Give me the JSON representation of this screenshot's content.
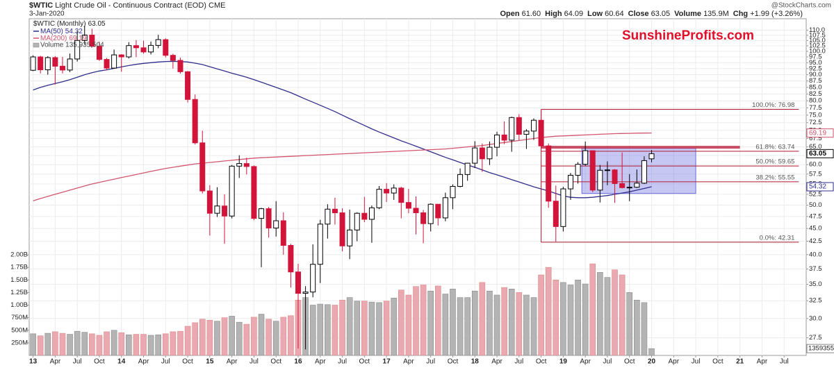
{
  "chart_data": {
    "type": "candlestick",
    "title": "$WTIC",
    "subtitle": "Light Crude Oil - Continuous Contract (EOD) CME",
    "date": "3-Jan-2020",
    "quote": [
      {
        "label": "Open",
        "text": "61.60"
      },
      {
        "label": "High",
        "text": "64.09"
      },
      {
        "label": "Low",
        "text": "60.64"
      },
      {
        "label": "Close",
        "text": "63.05"
      },
      {
        "label": "Volume",
        "text": "135.9M"
      },
      {
        "label": "Chg",
        "text": "+1.99 (+3.26%)"
      }
    ],
    "credit": "@StockCharts.com",
    "watermark": "SunshineProfits.com",
    "symbol_legend": "$WTIC (Monthly)",
    "volume_legend": "Volume 135,935,504",
    "log_scale": true,
    "grid": true,
    "up_color": "#ffffff",
    "down_color": "#d2143a",
    "volume_up_color": "#b4b4b4",
    "volume_down_color": "#eaa8b0",
    "xlim": [
      "2012-12",
      "2021-10"
    ],
    "ylim": [
      25.4,
      115.8
    ],
    "y2lim": [
      0,
      6690000000
    ],
    "xticks": [
      {
        "value": "2013-01",
        "label": "13"
      },
      {
        "value": "2013-04",
        "label": "Apr"
      },
      {
        "value": "2013-07",
        "label": "Jul"
      },
      {
        "value": "2013-10",
        "label": "Oct"
      },
      {
        "value": "2014-01",
        "label": "14"
      },
      {
        "value": "2014-04",
        "label": "Apr"
      },
      {
        "value": "2014-07",
        "label": "Jul"
      },
      {
        "value": "2014-10",
        "label": "Oct"
      },
      {
        "value": "2015-01",
        "label": "15"
      },
      {
        "value": "2015-04",
        "label": "Apr"
      },
      {
        "value": "2015-07",
        "label": "Jul"
      },
      {
        "value": "2015-10",
        "label": "Oct"
      },
      {
        "value": "2016-01",
        "label": "16"
      },
      {
        "value": "2016-04",
        "label": "Apr"
      },
      {
        "value": "2016-07",
        "label": "Jul"
      },
      {
        "value": "2016-10",
        "label": "Oct"
      },
      {
        "value": "2017-01",
        "label": "17"
      },
      {
        "value": "2017-04",
        "label": "Apr"
      },
      {
        "value": "2017-07",
        "label": "Jul"
      },
      {
        "value": "2017-10",
        "label": "Oct"
      },
      {
        "value": "2018-01",
        "label": "18"
      },
      {
        "value": "2018-04",
        "label": "Apr"
      },
      {
        "value": "2018-07",
        "label": "Jul"
      },
      {
        "value": "2018-10",
        "label": "Oct"
      },
      {
        "value": "2019-01",
        "label": "19"
      },
      {
        "value": "2019-04",
        "label": "Apr"
      },
      {
        "value": "2019-07",
        "label": "Jul"
      },
      {
        "value": "2019-10",
        "label": "Oct"
      },
      {
        "value": "2020-01",
        "label": "20"
      },
      {
        "value": "2020-04",
        "label": "Apr"
      },
      {
        "value": "2020-07",
        "label": "Jul"
      },
      {
        "value": "2020-10",
        "label": "Oct"
      },
      {
        "value": "2021-01",
        "label": "21"
      },
      {
        "value": "2021-04",
        "label": "Apr"
      },
      {
        "value": "2021-07",
        "label": "Jul"
      }
    ],
    "yticks": [
      27.5,
      {
        "value": 30,
        "label": "30.0"
      },
      32.5,
      {
        "value": 35,
        "label": "35.0"
      },
      37.5,
      {
        "value": 40,
        "label": "40.0"
      },
      42.5,
      {
        "value": 45,
        "label": "45.0"
      },
      47.5,
      {
        "value": 50,
        "label": "50.0"
      },
      52.5,
      {
        "value": 55,
        "label": "55.0"
      },
      57.5,
      {
        "value": 60,
        "label": "60.0"
      },
      62.5,
      {
        "value": 65,
        "label": "65.0"
      },
      67.5,
      {
        "value": 70,
        "label": "70.0"
      },
      72.5,
      {
        "value": 75,
        "label": "75.0"
      },
      77.5,
      {
        "value": 80,
        "label": "80.0"
      },
      82.5,
      {
        "value": 85,
        "label": "85.0"
      },
      87.5,
      {
        "value": 90,
        "label": "90.0"
      },
      92.5,
      {
        "value": 95,
        "label": "95.0"
      },
      97.5,
      {
        "value": 100,
        "label": "100.0"
      },
      102.5,
      {
        "value": 105,
        "label": "105.0"
      },
      107.5,
      {
        "value": 110,
        "label": "110.0"
      }
    ],
    "y2ticks": [
      {
        "value": 250000000,
        "label": "250M"
      },
      {
        "value": 500000000,
        "label": "500M"
      },
      {
        "value": 750000000,
        "label": "750M"
      },
      {
        "value": 1000000000,
        "label": "1.00B"
      },
      {
        "value": 1250000000,
        "label": "1.25B"
      },
      {
        "value": 1500000000,
        "label": "1.50B"
      },
      {
        "value": 1750000000,
        "label": "1.75B"
      },
      {
        "value": 2000000000,
        "label": "2.00B"
      }
    ],
    "x": [
      "2013-01",
      "2013-02",
      "2013-03",
      "2013-04",
      "2013-05",
      "2013-06",
      "2013-07",
      "2013-08",
      "2013-09",
      "2013-10",
      "2013-11",
      "2013-12",
      "2014-01",
      "2014-02",
      "2014-03",
      "2014-04",
      "2014-05",
      "2014-06",
      "2014-07",
      "2014-08",
      "2014-09",
      "2014-10",
      "2014-11",
      "2014-12",
      "2015-01",
      "2015-02",
      "2015-03",
      "2015-04",
      "2015-05",
      "2015-06",
      "2015-07",
      "2015-08",
      "2015-09",
      "2015-10",
      "2015-11",
      "2015-12",
      "2016-01",
      "2016-02",
      "2016-03",
      "2016-04",
      "2016-05",
      "2016-06",
      "2016-07",
      "2016-08",
      "2016-09",
      "2016-10",
      "2016-11",
      "2016-12",
      "2017-01",
      "2017-02",
      "2017-03",
      "2017-04",
      "2017-05",
      "2017-06",
      "2017-07",
      "2017-08",
      "2017-09",
      "2017-10",
      "2017-11",
      "2017-12",
      "2018-01",
      "2018-02",
      "2018-03",
      "2018-04",
      "2018-05",
      "2018-06",
      "2018-07",
      "2018-08",
      "2018-09",
      "2018-10",
      "2018-11",
      "2018-12",
      "2019-01",
      "2019-02",
      "2019-03",
      "2019-04",
      "2019-05",
      "2019-06",
      "2019-07",
      "2019-08",
      "2019-09",
      "2019-10",
      "2019-11",
      "2019-12",
      "2020-01"
    ],
    "open": [
      91.8,
      97.5,
      92.0,
      97.2,
      93.5,
      91.9,
      96.6,
      105.0,
      107.6,
      102.3,
      96.4,
      92.7,
      98.4,
      97.5,
      102.6,
      101.6,
      99.7,
      102.7,
      105.4,
      98.2,
      96.0,
      91.2,
      80.5,
      66.2,
      53.3,
      48.2,
      49.8,
      47.6,
      59.6,
      60.3,
      59.5,
      47.1,
      49.2,
      45.1,
      46.6,
      41.7,
      37.0,
      33.6,
      33.8,
      38.3,
      45.9,
      49.1,
      48.3,
      41.6,
      44.7,
      48.2,
      46.9,
      49.4,
      53.7,
      52.8,
      54.0,
      50.6,
      49.3,
      48.3,
      46.0,
      50.2,
      47.2,
      51.7,
      54.4,
      57.4,
      60.4,
      64.7,
      61.6,
      64.9,
      68.6,
      67.0,
      74.2,
      68.8,
      69.8,
      73.3,
      65.3,
      50.9,
      45.4,
      53.8,
      57.2,
      60.1,
      63.9,
      53.5,
      58.5,
      58.6,
      55.1,
      54.1,
      54.2,
      55.2,
      61.6
    ],
    "high": [
      98.2,
      98.0,
      97.8,
      97.8,
      97.5,
      99.0,
      109.3,
      112.2,
      110.7,
      104.4,
      97.0,
      100.8,
      98.7,
      104.2,
      105.2,
      104.9,
      104.5,
      107.7,
      106.0,
      98.9,
      97.2,
      91.5,
      82.3,
      69.9,
      54.7,
      54.2,
      52.5,
      59.9,
      62.6,
      61.9,
      59.8,
      49.4,
      49.6,
      50.9,
      48.4,
      42.0,
      38.4,
      34.7,
      41.9,
      46.8,
      50.2,
      51.7,
      49.3,
      49.0,
      48.4,
      51.9,
      49.9,
      54.5,
      55.2,
      54.9,
      54.3,
      53.8,
      52.0,
      48.9,
      50.4,
      50.2,
      52.9,
      54.9,
      59.0,
      60.5,
      66.7,
      66.0,
      66.6,
      69.6,
      72.9,
      74.5,
      75.3,
      70.4,
      73.9,
      76.9,
      66.0,
      54.6,
      54.3,
      57.8,
      60.7,
      66.6,
      64.0,
      59.9,
      60.9,
      58.8,
      63.4,
      57.5,
      58.7,
      62.3,
      64.09
    ],
    "low": [
      91.5,
      90.5,
      90.0,
      86.1,
      90.5,
      91.0,
      95.5,
      103.0,
      101.7,
      95.8,
      91.8,
      92.5,
      91.2,
      96.8,
      97.4,
      98.9,
      98.6,
      101.4,
      97.3,
      92.5,
      90.4,
      79.4,
      65.7,
      52.7,
      43.6,
      47.4,
      42.0,
      47.1,
      56.5,
      57.4,
      46.7,
      37.8,
      43.2,
      43.4,
      40.0,
      34.5,
      26.2,
      26.1,
      33.0,
      35.2,
      43.0,
      45.8,
      40.6,
      39.2,
      42.5,
      46.3,
      42.2,
      49.1,
      50.7,
      51.2,
      47.1,
      48.2,
      43.8,
      42.1,
      44.4,
      45.6,
      46.5,
      49.1,
      54.2,
      55.8,
      59.1,
      58.1,
      59.9,
      62.3,
      65.8,
      63.6,
      66.9,
      64.4,
      67.1,
      64.9,
      49.4,
      42.4,
      44.4,
      51.2,
      55.1,
      59.7,
      53.0,
      50.6,
      54.7,
      50.5,
      53.9,
      50.9,
      54.0,
      55.0,
      60.64
    ],
    "close": [
      97.5,
      92.0,
      97.2,
      93.5,
      91.9,
      96.6,
      105.0,
      107.6,
      102.3,
      96.4,
      92.7,
      98.4,
      97.5,
      102.6,
      101.6,
      99.7,
      102.7,
      105.4,
      98.2,
      96.0,
      91.2,
      80.5,
      66.2,
      53.3,
      48.2,
      49.8,
      47.6,
      59.6,
      60.3,
      59.5,
      47.1,
      49.2,
      45.1,
      46.6,
      41.7,
      37.0,
      33.6,
      33.8,
      38.3,
      45.9,
      49.1,
      48.3,
      41.6,
      44.7,
      48.2,
      46.9,
      49.4,
      53.7,
      52.8,
      54.0,
      50.6,
      49.3,
      48.3,
      46.0,
      50.2,
      47.2,
      51.7,
      54.4,
      57.4,
      60.4,
      64.7,
      61.6,
      64.9,
      68.6,
      67.0,
      74.2,
      68.8,
      69.8,
      73.3,
      65.3,
      50.9,
      45.4,
      53.8,
      57.2,
      60.1,
      63.9,
      53.5,
      58.5,
      58.6,
      55.1,
      54.1,
      54.2,
      55.2,
      61.1,
      63.05
    ],
    "volume": [
      430000000,
      390000000,
      440000000,
      470000000,
      440000000,
      420000000,
      480000000,
      460000000,
      430000000,
      400000000,
      470000000,
      500000000,
      450000000,
      410000000,
      420000000,
      420000000,
      400000000,
      410000000,
      430000000,
      470000000,
      480000000,
      580000000,
      650000000,
      720000000,
      700000000,
      680000000,
      750000000,
      780000000,
      660000000,
      620000000,
      760000000,
      820000000,
      720000000,
      680000000,
      760000000,
      790000000,
      1100000000,
      1150000000,
      1000000000,
      1020000000,
      1010000000,
      1000000000,
      1100000000,
      1150000000,
      1080000000,
      1080000000,
      1060000000,
      1050000000,
      1080000000,
      1140000000,
      1300000000,
      1200000000,
      1370000000,
      1400000000,
      1280000000,
      1380000000,
      1220000000,
      1320000000,
      1150000000,
      1150000000,
      1280000000,
      1450000000,
      1280000000,
      1200000000,
      1350000000,
      1320000000,
      1250000000,
      1200000000,
      1150000000,
      1600000000,
      1750000000,
      1500000000,
      1450000000,
      1400000000,
      1500000000,
      1420000000,
      1820000000,
      1650000000,
      1550000000,
      1700000000,
      1600000000,
      1250000000,
      1100000000,
      1050000000,
      135935504
    ],
    "series": [
      {
        "name": "MA(50)",
        "color": "#2e2e8c",
        "values": [
          84.0,
          85.0,
          85.8,
          86.5,
          87.2,
          88.0,
          89.0,
          90.0,
          90.8,
          91.5,
          92.0,
          92.6,
          93.2,
          93.8,
          94.3,
          94.7,
          95.0,
          95.3,
          95.5,
          95.6,
          95.5,
          95.3,
          94.8,
          94.2,
          93.3,
          92.4,
          91.5,
          90.6,
          89.8,
          89.0,
          88.0,
          87.0,
          86.0,
          85.0,
          84.0,
          83.0,
          81.8,
          80.6,
          79.5,
          78.4,
          77.3,
          76.2,
          75.0,
          73.8,
          72.7,
          71.6,
          70.5,
          69.5,
          68.6,
          67.7,
          66.8,
          66.0,
          65.2,
          64.4,
          63.6,
          62.8,
          62.0,
          61.3,
          60.6,
          59.9,
          59.3,
          58.6,
          57.9,
          57.3,
          56.7,
          56.1,
          55.5,
          54.9,
          54.3,
          53.8,
          53.3,
          52.7,
          52.1,
          51.8,
          51.7,
          51.7,
          51.8,
          52.0,
          52.2,
          52.5,
          52.8,
          53.1,
          53.5,
          53.9,
          54.32
        ]
      },
      {
        "name": "MA(200)",
        "color": "#d2556e",
        "values": [
          51.0,
          51.5,
          52.0,
          52.5,
          53.0,
          53.5,
          54.0,
          54.5,
          55.0,
          55.4,
          55.8,
          56.2,
          56.6,
          57.0,
          57.4,
          57.8,
          58.2,
          58.6,
          59.0,
          59.3,
          59.6,
          59.9,
          60.2,
          60.4,
          60.6,
          60.8,
          61.0,
          61.2,
          61.4,
          61.6,
          61.8,
          61.9,
          62.0,
          62.1,
          62.2,
          62.3,
          62.4,
          62.5,
          62.6,
          62.7,
          62.8,
          62.9,
          63.0,
          63.1,
          63.2,
          63.3,
          63.4,
          63.5,
          63.6,
          63.7,
          63.8,
          63.9,
          64.0,
          64.1,
          64.2,
          64.3,
          64.4,
          64.6,
          64.8,
          65.0,
          65.2,
          65.4,
          65.7,
          66.0,
          66.3,
          66.6,
          66.9,
          67.2,
          67.5,
          67.8,
          68.0,
          68.2,
          68.3,
          68.4,
          68.5,
          68.6,
          68.7,
          68.8,
          68.9,
          69.0,
          69.05,
          69.1,
          69.15,
          69.17,
          69.19
        ]
      }
    ],
    "fib_x": [
      "2018-10",
      "2021-09"
    ],
    "fib_levels": [
      {
        "label": "100.0%: 76.98",
        "value": 76.98
      },
      {
        "label": "61.8%: 63.74",
        "value": 63.74
      },
      {
        "label": "50.0%: 59.65",
        "value": 59.65
      },
      {
        "label": "38.2%: 55.55",
        "value": 55.55
      },
      {
        "label": "0.0%: 42.31",
        "value": 42.31
      }
    ],
    "resistance": {
      "value": 64.9,
      "x": [
        "2018-10",
        "2021-01"
      ],
      "color": "#c0304a"
    },
    "box": {
      "x": [
        "2019-04",
        "2020-07"
      ],
      "y": [
        52.7,
        64.6
      ],
      "color": "#6b6be0"
    }
  }
}
